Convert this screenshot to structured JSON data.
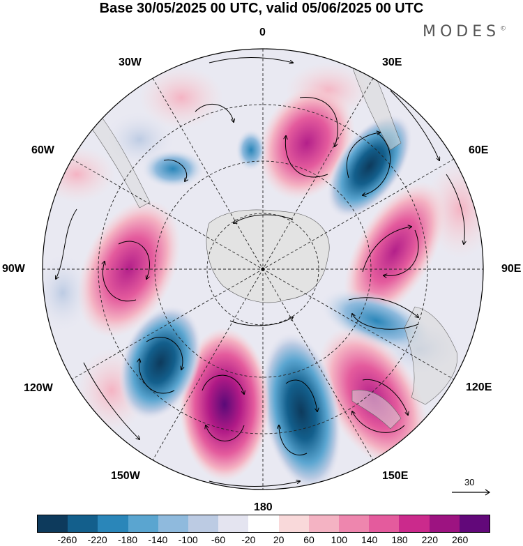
{
  "title": "Base 30/05/2025 00 UTC, valid 05/06/2025 00 UTC",
  "brand": {
    "name": "MODES",
    "mark": "©"
  },
  "lon_labels": {
    "n0": "0",
    "n30e": "30E",
    "n60e": "60E",
    "n90e": "90E",
    "n120e": "120E",
    "n150e": "150E",
    "n180": "180",
    "n150w": "150W",
    "n120w": "120W",
    "n90w": "90W",
    "n60w": "60W",
    "n30w": "30W"
  },
  "reference_vector": {
    "value": "30"
  },
  "colorbar": {
    "colors": [
      "#0d3a5c",
      "#135f8c",
      "#2a86b9",
      "#5aa5d0",
      "#8fbadd",
      "#bccbe3",
      "#e4e4f0",
      "#ffffff",
      "#f9d9da",
      "#f4b3c3",
      "#ee86ae",
      "#e45b9d",
      "#cb2a8c",
      "#9d1381",
      "#62087a"
    ],
    "tick_labels": [
      "-260",
      "-220",
      "-180",
      "-140",
      "-100",
      "-60",
      "-20",
      "20",
      "60",
      "100",
      "140",
      "180",
      "220",
      "260"
    ]
  },
  "legend_colors": {
    "negative": "#1f6fa3",
    "positive": "#d94894",
    "land": "#e6e6e6"
  }
}
